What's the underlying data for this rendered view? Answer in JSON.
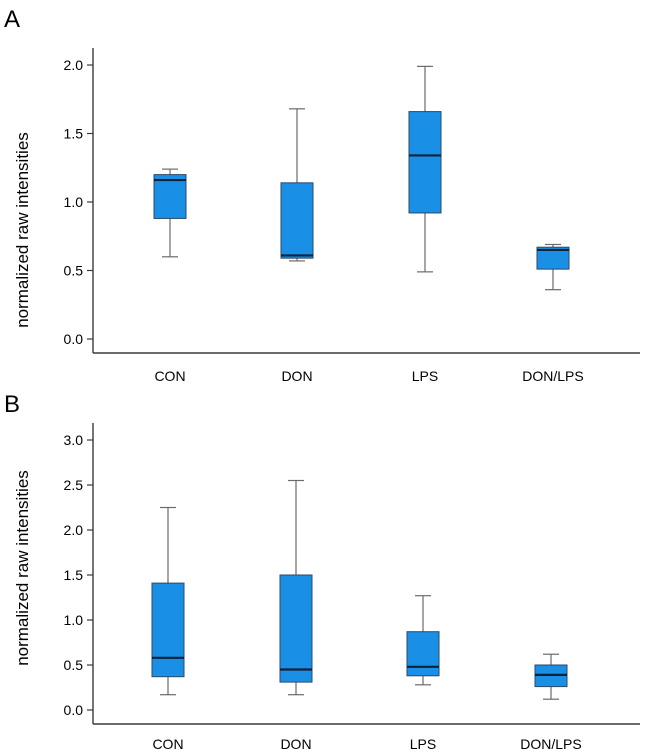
{
  "chart_data": [
    {
      "panel": "A",
      "type": "box",
      "ylabel": "normalized raw intensities",
      "ylim": [
        0,
        2.0
      ],
      "yticks": [
        "0.0",
        "0.5",
        "1.0",
        "1.5",
        "2.0"
      ],
      "ytick_values": [
        0,
        0.5,
        1.0,
        1.5,
        2.0
      ],
      "categories": [
        "CON",
        "DON",
        "LPS",
        "DON/LPS"
      ],
      "boxes": [
        {
          "min": 0.6,
          "q1": 0.88,
          "median": 1.16,
          "q3": 1.2,
          "max": 1.24
        },
        {
          "min": 0.57,
          "q1": 0.59,
          "median": 0.61,
          "q3": 1.14,
          "max": 1.68
        },
        {
          "min": 0.49,
          "q1": 0.92,
          "median": 1.34,
          "q3": 1.66,
          "max": 1.99
        },
        {
          "min": 0.36,
          "q1": 0.51,
          "median": 0.65,
          "q3": 0.67,
          "max": 0.69
        }
      ]
    },
    {
      "panel": "B",
      "type": "box",
      "ylabel": "normalized raw intensities",
      "ylim": [
        0,
        3.0
      ],
      "yticks": [
        "0.0",
        "0.5",
        "1.0",
        "1.5",
        "2.0",
        "2.5",
        "3.0"
      ],
      "ytick_values": [
        0,
        0.5,
        1.0,
        1.5,
        2.0,
        2.5,
        3.0
      ],
      "categories": [
        "CON",
        "DON",
        "LPS",
        "DON/LPS"
      ],
      "boxes": [
        {
          "min": 0.17,
          "q1": 0.37,
          "median": 0.58,
          "q3": 1.41,
          "max": 2.25
        },
        {
          "min": 0.17,
          "q1": 0.31,
          "median": 0.45,
          "q3": 1.5,
          "max": 2.55
        },
        {
          "min": 0.28,
          "q1": 0.38,
          "median": 0.48,
          "q3": 0.87,
          "max": 1.27
        },
        {
          "min": 0.12,
          "q1": 0.26,
          "median": 0.39,
          "q3": 0.5,
          "max": 0.62
        }
      ]
    }
  ],
  "colors": {
    "box_fill": "#1a8fe6",
    "median": "#0c2236",
    "whisker": "#6b6b6b",
    "axis": "#3a3a3a"
  }
}
